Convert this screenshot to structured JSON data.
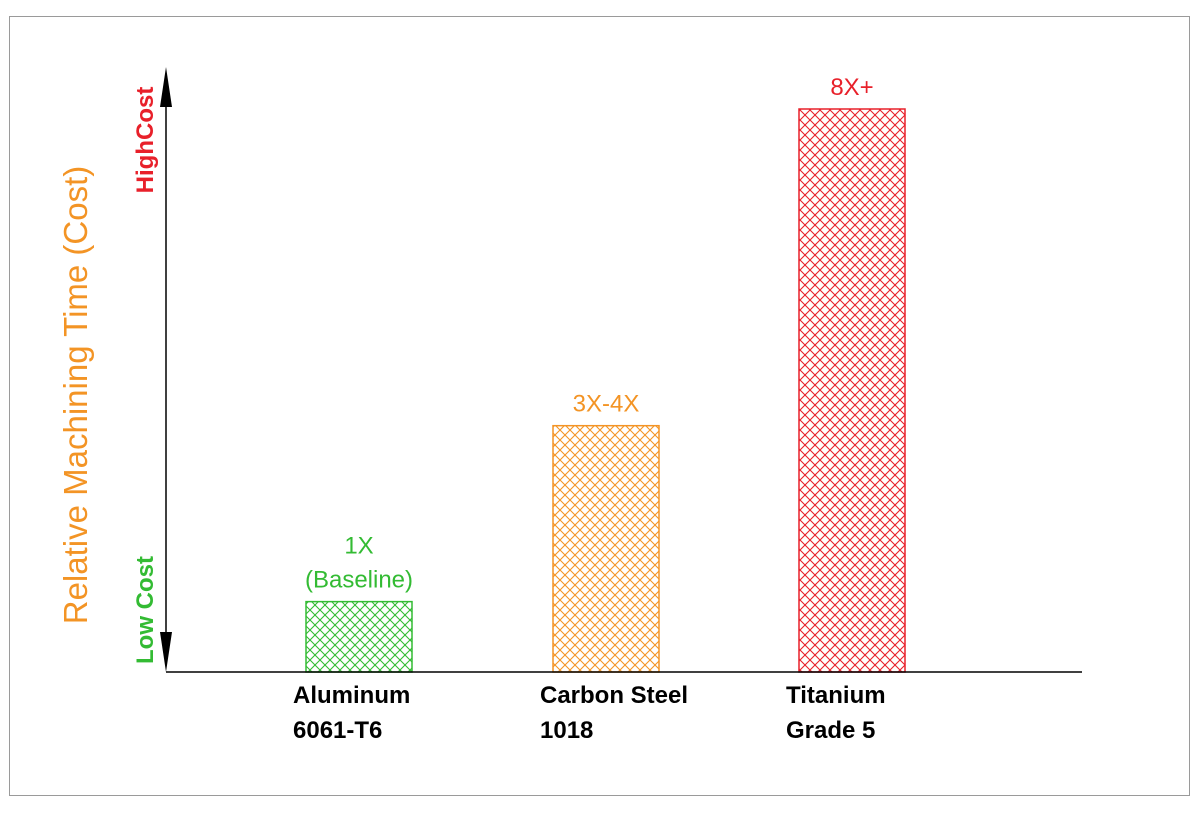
{
  "chart_data": {
    "type": "bar",
    "ylabel": "Relative Machining Time (Cost)",
    "y_axis_labels": {
      "low": "Low Cost",
      "high": "HighCost"
    },
    "categories": [
      [
        "Aluminum",
        "6061-T6"
      ],
      [
        "Carbon Steel",
        "1018"
      ],
      [
        "Titanium",
        "Grade 5"
      ]
    ],
    "values": [
      1,
      3.5,
      8
    ],
    "value_labels": [
      [
        "1X",
        "(Baseline)"
      ],
      [
        "3X-4X"
      ],
      [
        "8X+"
      ]
    ],
    "ylim": [
      0,
      8.5
    ],
    "bar_fill": "crosshatch",
    "grid": false,
    "legend": "none"
  },
  "colors": {
    "low": "#33bb33",
    "mid": "#f39425",
    "high": "#e8202a",
    "axis": "#000000",
    "ylabel": "#f39425",
    "category_text": "#000000",
    "bars": [
      "#33bb33",
      "#f39425",
      "#e8202a"
    ]
  }
}
